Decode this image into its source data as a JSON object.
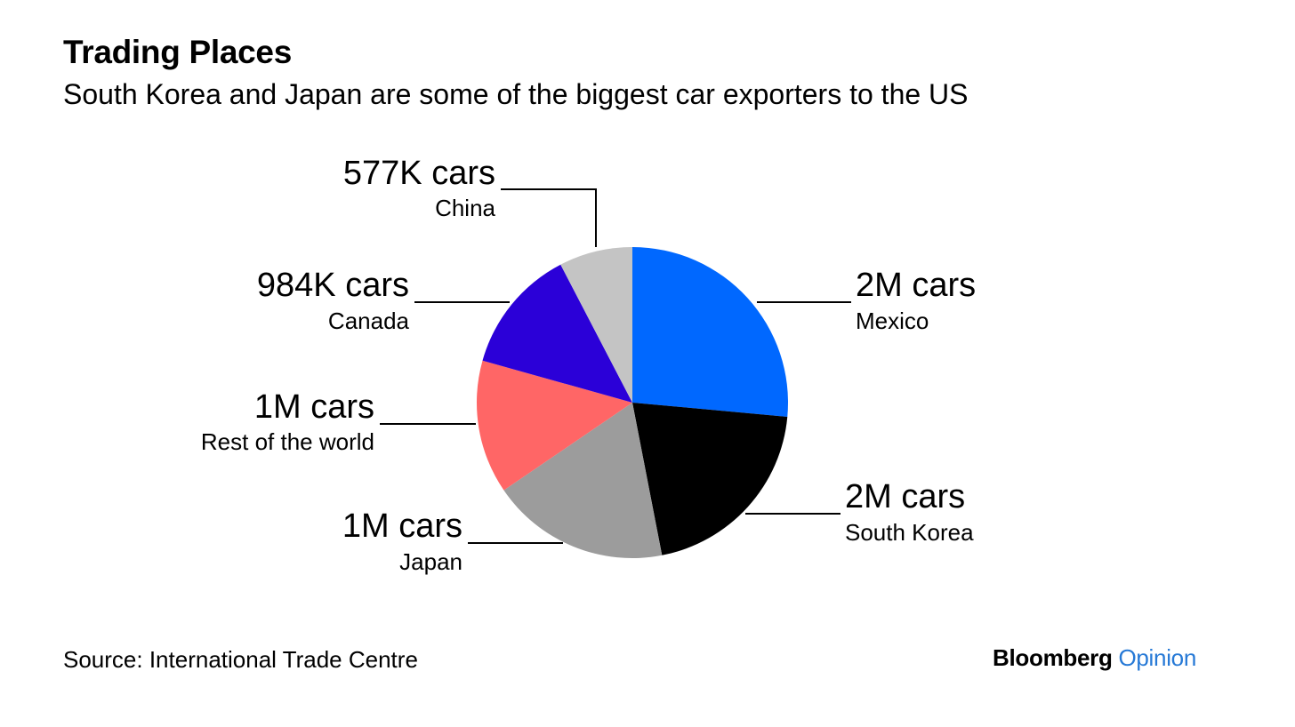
{
  "header": {
    "title": "Trading Places",
    "subtitle": "South Korea and Japan are some of the biggest car exporters to the US"
  },
  "chart_data": {
    "type": "pie",
    "title": "Trading Places",
    "subtitle": "South Korea and Japan are some of the biggest car exporters to the US",
    "start_angle_deg": 0,
    "direction": "clockwise",
    "slices": [
      {
        "label": "Mexico",
        "value_label": "2M cars",
        "value": 2000000,
        "color": "#0068ff"
      },
      {
        "label": "South Korea",
        "value_label": "2M cars",
        "value": 1550000,
        "color": "#000000"
      },
      {
        "label": "Japan",
        "value_label": "1M cars",
        "value": 1400000,
        "color": "#9c9c9c"
      },
      {
        "label": "Rest of the world",
        "value_label": "1M cars",
        "value": 1050000,
        "color": "#ff6666"
      },
      {
        "label": "Canada",
        "value_label": "984K cars",
        "value": 984000,
        "color": "#2b00d8"
      },
      {
        "label": "China",
        "value_label": "577K cars",
        "value": 577000,
        "color": "#c4c4c4"
      }
    ]
  },
  "footer": {
    "source": "Source: International Trade Centre",
    "brand_primary": "Bloomberg",
    "brand_secondary": "Opinion",
    "brand_accent_color": "#2679d6"
  }
}
